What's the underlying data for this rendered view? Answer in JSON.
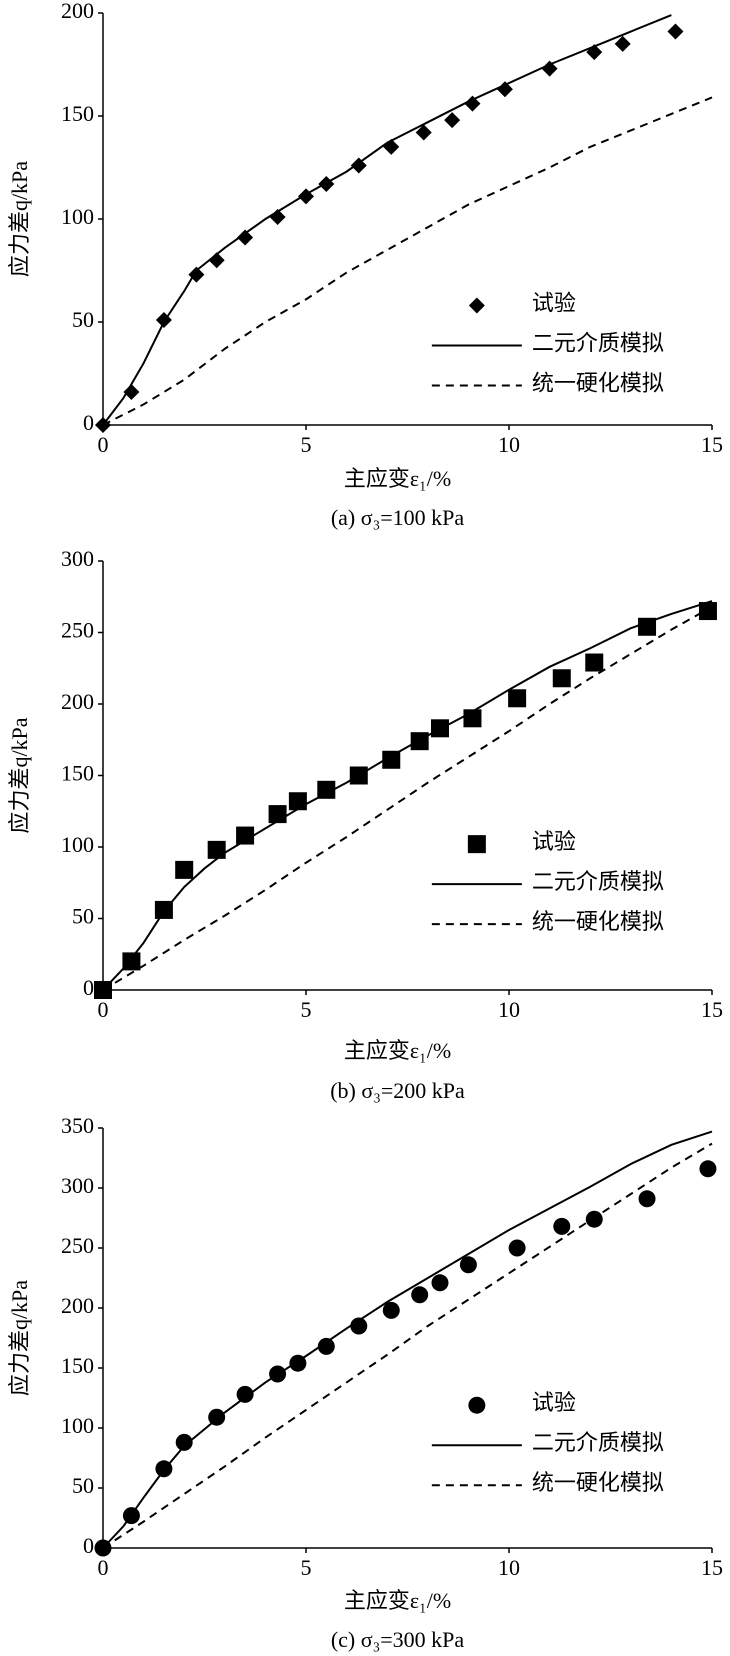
{
  "chart_data": [
    {
      "type": "line",
      "caption": "(a) σ₃=100 kPa",
      "xlabel": "主应变ε₁/%",
      "ylabel": "应力差q/kPa",
      "xlim": [
        0,
        15
      ],
      "xticks": [
        0,
        5,
        10,
        15
      ],
      "ylim": [
        0,
        200
      ],
      "yticks": [
        0,
        50,
        100,
        150,
        200
      ],
      "legend": "lower right",
      "series": [
        {
          "name": "试验",
          "type": "scatter",
          "marker": "diamond",
          "color": "#000000",
          "x": [
            0,
            0.7,
            1.5,
            2.3,
            2.8,
            3.5,
            4.3,
            5,
            5.5,
            6.3,
            7.1,
            7.9,
            8.6,
            9.1,
            9.9,
            11,
            12.1,
            12.8,
            14.1
          ],
          "values": [
            0,
            16,
            51,
            73,
            80,
            91,
            101,
            111,
            117,
            126,
            135,
            142,
            148,
            156,
            163,
            173,
            181,
            185,
            191
          ]
        },
        {
          "name": "二元介质模拟",
          "type": "line",
          "dash": false,
          "color": "#000000",
          "x": [
            0,
            0.5,
            1,
            1.5,
            2,
            2.3,
            3,
            4,
            5,
            6,
            7,
            8,
            9,
            10,
            11,
            12,
            13,
            14
          ],
          "values": [
            0,
            13,
            30,
            50,
            65,
            75,
            86,
            100,
            112,
            123,
            137,
            147,
            157,
            166,
            175,
            183,
            191,
            199
          ]
        },
        {
          "name": "统一硬化模拟",
          "type": "line",
          "dash": true,
          "color": "#000000",
          "x": [
            0,
            1,
            2,
            3,
            4,
            5,
            6,
            7,
            8,
            9,
            10,
            11,
            12,
            13,
            14,
            15
          ],
          "values": [
            0,
            10,
            22,
            37,
            50,
            61,
            74,
            85,
            96,
            107,
            116,
            125,
            135,
            143,
            151,
            159
          ]
        }
      ]
    },
    {
      "type": "line",
      "caption": "(b) σ₃=200 kPa",
      "xlabel": "主应变ε₁/%",
      "ylabel": "应力差q/kPa",
      "xlim": [
        0,
        15
      ],
      "xticks": [
        0,
        5,
        10,
        15
      ],
      "ylim": [
        0,
        300
      ],
      "yticks": [
        0,
        50,
        100,
        150,
        200,
        250,
        300
      ],
      "legend": "lower right",
      "series": [
        {
          "name": "试验",
          "type": "scatter",
          "marker": "square",
          "color": "#000000",
          "x": [
            0,
            0.7,
            1.5,
            2,
            2.8,
            3.5,
            4.3,
            4.8,
            5.5,
            6.3,
            7.1,
            7.8,
            8.3,
            9.1,
            10.2,
            11.3,
            12.1,
            13.4,
            14.9
          ],
          "values": [
            0,
            20,
            56,
            84,
            98,
            108,
            123,
            132,
            140,
            150,
            161,
            174,
            183,
            190,
            204,
            218,
            229,
            254,
            265
          ]
        },
        {
          "name": "二元介质模拟",
          "type": "line",
          "dash": false,
          "color": "#000000",
          "x": [
            0,
            0.5,
            1,
            1.5,
            2,
            2.5,
            3,
            4,
            5,
            6,
            7,
            8,
            9,
            10,
            11,
            12,
            13,
            14,
            15
          ],
          "values": [
            0,
            15,
            33,
            55,
            72,
            85,
            96,
            113,
            130,
            145,
            162,
            178,
            193,
            210,
            226,
            239,
            253,
            263,
            272
          ]
        },
        {
          "name": "统一硬化模拟",
          "type": "line",
          "dash": true,
          "color": "#000000",
          "x": [
            0,
            1,
            2,
            3,
            4,
            5,
            6,
            7,
            8,
            9,
            10,
            11,
            12,
            13,
            14,
            15
          ],
          "values": [
            0,
            17,
            35,
            52,
            70,
            89,
            107,
            126,
            145,
            163,
            181,
            200,
            218,
            235,
            252,
            268
          ]
        }
      ]
    },
    {
      "type": "line",
      "caption": "(c) σ₃=300 kPa",
      "xlabel": "主应变ε₁/%",
      "ylabel": "应力差q/kPa",
      "xlim": [
        0,
        15
      ],
      "xticks": [
        0,
        5,
        10,
        15
      ],
      "ylim": [
        0,
        350
      ],
      "yticks": [
        0,
        50,
        100,
        150,
        200,
        250,
        300,
        350
      ],
      "legend": "lower right",
      "series": [
        {
          "name": "试验",
          "type": "scatter",
          "marker": "circle",
          "color": "#000000",
          "x": [
            0,
            0.7,
            1.5,
            2,
            2.8,
            3.5,
            4.3,
            4.8,
            5.5,
            6.3,
            7.1,
            7.8,
            8.3,
            9,
            10.2,
            11.3,
            12.1,
            13.4,
            14.9
          ],
          "values": [
            0,
            27,
            66,
            88,
            109,
            128,
            145,
            154,
            168,
            185,
            198,
            211,
            221,
            236,
            250,
            268,
            274,
            291,
            316
          ]
        },
        {
          "name": "二元介质模拟",
          "type": "line",
          "dash": false,
          "color": "#000000",
          "x": [
            0,
            0.5,
            1,
            1.5,
            2,
            3,
            4,
            5,
            6,
            7,
            8,
            9,
            10,
            11,
            12,
            13,
            14,
            15
          ],
          "values": [
            0,
            18,
            42,
            65,
            85,
            113,
            138,
            160,
            183,
            205,
            225,
            245,
            265,
            283,
            301,
            320,
            336,
            347
          ]
        },
        {
          "name": "统一硬化模拟",
          "type": "line",
          "dash": true,
          "color": "#000000",
          "x": [
            0,
            1,
            2,
            3,
            4,
            5,
            6,
            7,
            8,
            9,
            10,
            11,
            12,
            13,
            14,
            15
          ],
          "values": [
            0,
            22,
            45,
            68,
            92,
            115,
            138,
            161,
            185,
            207,
            229,
            251,
            273,
            295,
            317,
            337
          ]
        }
      ]
    }
  ]
}
